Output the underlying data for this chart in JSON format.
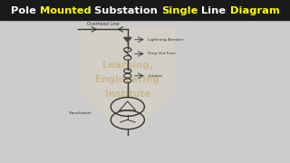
{
  "title_bg": "#1a1a1a",
  "bg_color": "#cccccc",
  "line_color": "#333333",
  "title_parts": [
    {
      "text": "Pole ",
      "color": "#ffffff"
    },
    {
      "text": "Mounted",
      "color": "#ffff00"
    },
    {
      "text": " Substation ",
      "color": "#ffffff"
    },
    {
      "text": "Single",
      "color": "#ffff00"
    },
    {
      "text": " Line ",
      "color": "#ffffff"
    },
    {
      "text": "Diagram",
      "color": "#ffff00"
    }
  ],
  "watermark_lines": [
    "Learning,",
    "Engineering",
    "Institute"
  ],
  "watermark_color": "#b8860b",
  "watermark_alpha": 0.3,
  "shield_color": "#f5deb3",
  "shield_alpha": 0.18
}
